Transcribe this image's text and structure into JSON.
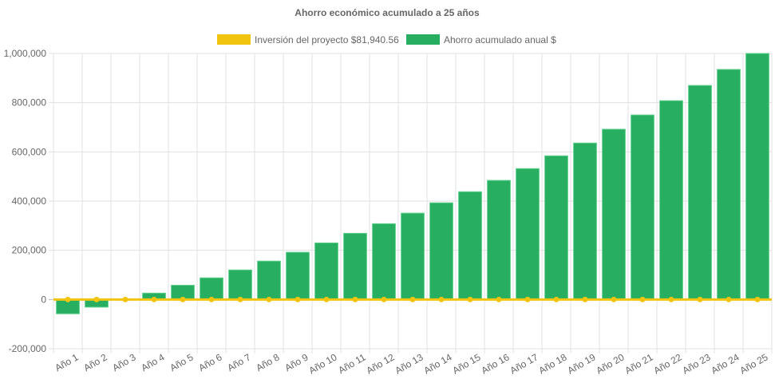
{
  "chart_data": {
    "type": "bar",
    "title": "Ahorro económico acumulado a 25 años",
    "categories": [
      "Año 1",
      "Año 2",
      "Año 3",
      "Año 4",
      "Año 5",
      "Año 6",
      "Año 7",
      "Año 8",
      "Año 9",
      "Año 10",
      "Año 11",
      "Año 12",
      "Año 13",
      "Año 14",
      "Año 15",
      "Año 16",
      "Año 17",
      "Año 18",
      "Año 19",
      "Año 20",
      "Año 21",
      "Año 22",
      "Año 23",
      "Año 24",
      "Año 25"
    ],
    "series": [
      {
        "name": "Inversión del proyecto $81,940.56",
        "type": "line",
        "color": "#f1c40f",
        "values": [
          0,
          0,
          0,
          0,
          0,
          0,
          0,
          0,
          0,
          0,
          0,
          0,
          0,
          0,
          0,
          0,
          0,
          0,
          0,
          0,
          0,
          0,
          0,
          0,
          0
        ]
      },
      {
        "name": "Ahorro acumulado anual $",
        "type": "bar",
        "color": "#27ae60",
        "values": [
          -58000,
          -31000,
          0,
          26000,
          58000,
          88000,
          120000,
          156000,
          192000,
          230000,
          269000,
          308000,
          351000,
          393000,
          438000,
          484000,
          532000,
          584000,
          636000,
          692000,
          750000,
          808000,
          870000,
          935000,
          1000000
        ]
      }
    ],
    "ylim": [
      -200000,
      1000000
    ],
    "yticks": [
      "-200,000",
      "0",
      "200,000",
      "400,000",
      "600,000",
      "800,000",
      "1,000,000"
    ],
    "grid": true,
    "legend": "top"
  }
}
